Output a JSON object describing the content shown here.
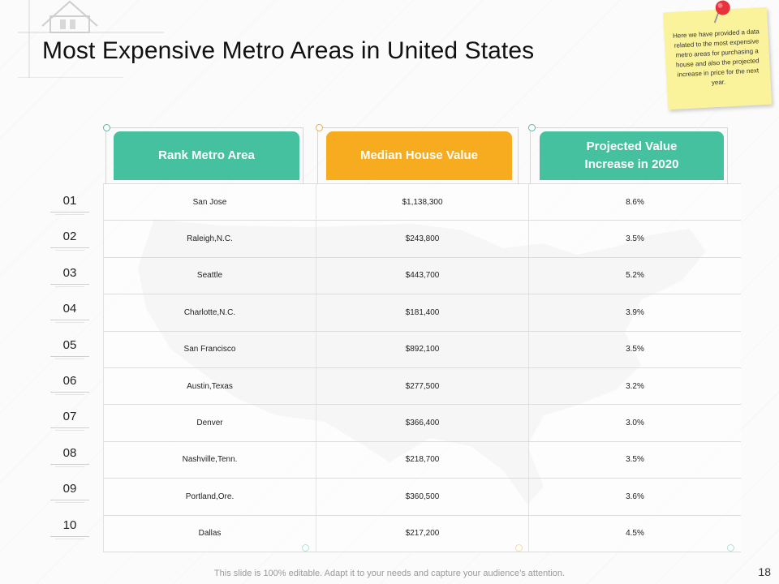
{
  "slide": {
    "title": "Most Expensive Metro Areas in United States",
    "note": "Here we have provided a data related to the most expensive metro areas for purchasing a house and also the projected increase in price for the next year.",
    "footer": "This slide is 100% editable. Adapt it to your needs and capture your audience’s attention.",
    "page_number": "18"
  },
  "table": {
    "headers": [
      "Rank Metro Area",
      "Median House Value",
      "Projected Value Increase in 2020"
    ],
    "ranks": [
      "01",
      "02",
      "03",
      "04",
      "05",
      "06",
      "07",
      "08",
      "09",
      "10"
    ],
    "rows": [
      {
        "area": "San Jose",
        "value": "$1,138,300",
        "increase": "8.6%"
      },
      {
        "area": "Raleigh,N.C.",
        "value": "$243,800",
        "increase": "3.5%"
      },
      {
        "area": "Seattle",
        "value": "$443,700",
        "increase": "5.2%"
      },
      {
        "area": "Charlotte,N.C.",
        "value": "$181,400",
        "increase": "3.9%"
      },
      {
        "area": "San Francisco",
        "value": "$892,100",
        "increase": "3.5%"
      },
      {
        "area": "Austin,Texas",
        "value": "$277,500",
        "increase": "3.2%"
      },
      {
        "area": "Denver",
        "value": "$366,400",
        "increase": "3.0%"
      },
      {
        "area": "Nashville,Tenn.",
        "value": "$218,700",
        "increase": "3.5%"
      },
      {
        "area": "Portland,Ore.",
        "value": "$360,500",
        "increase": "3.6%"
      },
      {
        "area": "Dallas",
        "value": "$217,200",
        "increase": "4.5%"
      }
    ]
  },
  "colors": {
    "green": "#45c19f",
    "orange": "#f7ac1f",
    "note": "#fbf39b",
    "pin": "#e8323c"
  },
  "icons": [
    "house-logo-icon",
    "push-pin-icon",
    "us-map-icon"
  ]
}
